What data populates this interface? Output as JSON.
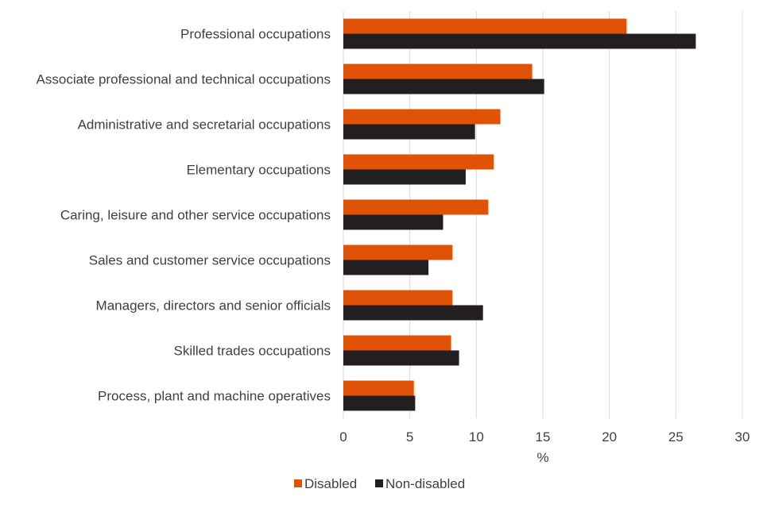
{
  "chart_data": {
    "type": "bar",
    "orientation": "horizontal",
    "title": "",
    "categories": [
      "Professional occupations",
      "Associate professional and technical occupations",
      "Administrative and secretarial occupations",
      "Elementary occupations",
      "Caring, leisure and other service occupations",
      "Sales and customer service occupations",
      "Managers, directors and senior officials",
      "Skilled trades occupations",
      "Process, plant and machine operatives"
    ],
    "series": [
      {
        "name": "Disabled",
        "color": "#e05206",
        "values": [
          21.3,
          14.2,
          11.8,
          11.3,
          10.9,
          8.2,
          8.2,
          8.1,
          5.3
        ]
      },
      {
        "name": "Non-disabled",
        "color": "#231f20",
        "values": [
          26.5,
          15.1,
          9.9,
          9.2,
          7.5,
          6.4,
          10.5,
          8.7,
          5.4
        ]
      }
    ],
    "xlabel": "%",
    "ylabel": "",
    "xlim": [
      0,
      30
    ],
    "xticks": [
      "0",
      "5",
      "10",
      "15",
      "20",
      "25",
      "30"
    ],
    "grid": true,
    "legend_position": "bottom"
  }
}
